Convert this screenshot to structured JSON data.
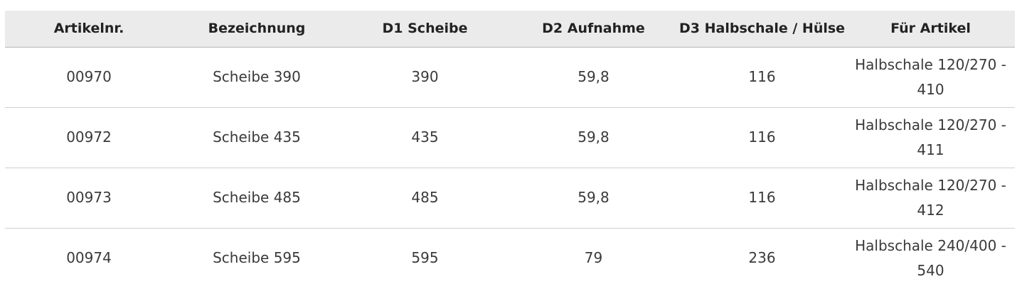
{
  "table": {
    "headers": [
      "Artikelnr.",
      "Bezeichnung",
      "D1 Scheibe",
      "D2 Aufnahme",
      "D3 Halbschale / Hülse",
      "Für Artikel"
    ],
    "rows": [
      [
        "00970",
        "Scheibe 390",
        "390",
        "59,8",
        "116",
        "Halbschale 120/270 - 410"
      ],
      [
        "00972",
        "Scheibe 435",
        "435",
        "59,8",
        "116",
        "Halbschale 120/270 - 411"
      ],
      [
        "00973",
        "Scheibe 485",
        "485",
        "59,8",
        "116",
        "Halbschale 120/270 - 412"
      ],
      [
        "00974",
        "Scheibe 595",
        "595",
        "79",
        "236",
        "Halbschale 240/400 - 540"
      ]
    ]
  }
}
